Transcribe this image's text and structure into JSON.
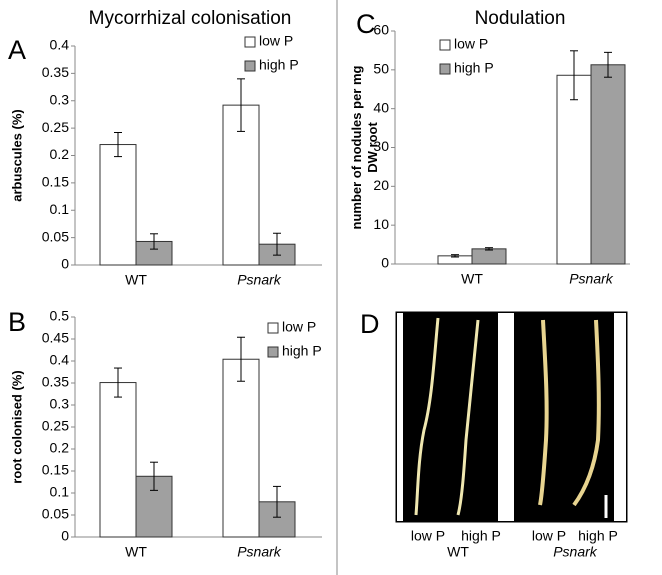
{
  "headings": [
    "Mycorrhizal colonisation",
    "Nodulation"
  ],
  "chart_data": [
    {
      "type": "bar",
      "panel": "A",
      "ylabel": "arbuscules (%)",
      "categories": [
        "WT",
        "Psnark"
      ],
      "series": [
        {
          "name": "low P",
          "color": "#ffffff",
          "values": [
            0.22,
            0.292
          ],
          "errors": [
            0.022,
            0.048
          ]
        },
        {
          "name": "high P",
          "color": "#a0a0a0",
          "values": [
            0.043,
            0.038
          ],
          "errors": [
            0.014,
            0.02
          ]
        }
      ],
      "ylim": [
        0,
        0.4
      ],
      "yticks": [
        0,
        0.05,
        0.1,
        0.15,
        0.2,
        0.25,
        0.3,
        0.35,
        0.4
      ]
    },
    {
      "type": "bar",
      "panel": "B",
      "ylabel": "root colonised (%)",
      "categories": [
        "WT",
        "Psnark"
      ],
      "series": [
        {
          "name": "low P",
          "color": "#ffffff",
          "values": [
            0.351,
            0.404
          ],
          "errors": [
            0.033,
            0.05
          ]
        },
        {
          "name": "high P",
          "color": "#a0a0a0",
          "values": [
            0.138,
            0.08
          ],
          "errors": [
            0.032,
            0.035
          ]
        }
      ],
      "ylim": [
        0,
        0.5
      ],
      "yticks": [
        0,
        0.05,
        0.1,
        0.15,
        0.2,
        0.25,
        0.3,
        0.35,
        0.4,
        0.45,
        0.5
      ]
    },
    {
      "type": "bar",
      "panel": "C",
      "ylabel": [
        "number of nodules per mg",
        "DW root"
      ],
      "categories": [
        "WT",
        "Psnark"
      ],
      "series": [
        {
          "name": "low P",
          "color": "#ffffff",
          "values": [
            2.1,
            48.6
          ],
          "errors": [
            0.3,
            6.3
          ]
        },
        {
          "name": "high P",
          "color": "#a0a0a0",
          "values": [
            3.9,
            51.3
          ],
          "errors": [
            0.3,
            3.2
          ]
        }
      ],
      "ylim": [
        0,
        60
      ],
      "yticks": [
        0,
        10,
        20,
        30,
        40,
        50,
        60
      ]
    }
  ],
  "photo": {
    "panel": "D",
    "labels": [
      "low P",
      "high P",
      "low P",
      "high P"
    ],
    "groups": [
      "WT",
      "Psnark"
    ]
  }
}
